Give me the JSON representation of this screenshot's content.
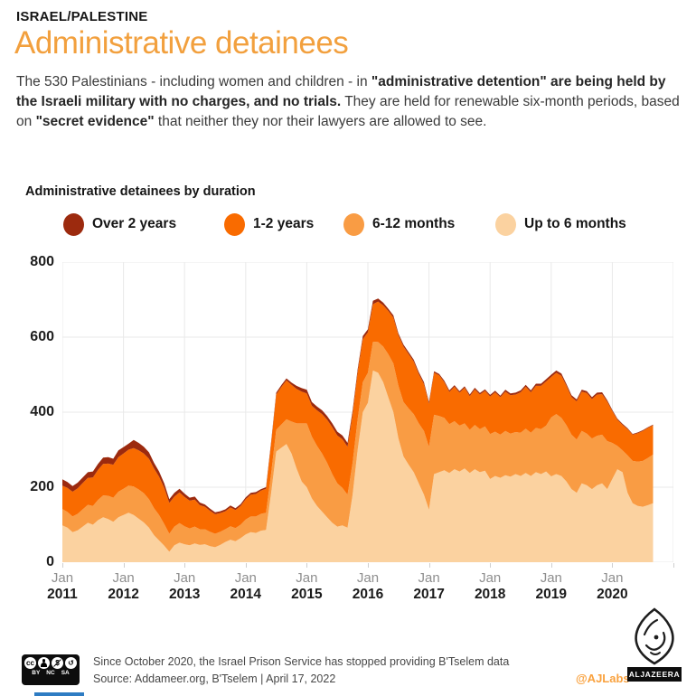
{
  "header": {
    "kicker": "ISRAEL/PALESTINE",
    "title": "Administrative detainees",
    "intro_segments": [
      {
        "text": "The 530 Palestinians - including women and children - in ",
        "bold": false
      },
      {
        "text": "\"administrative detention\" are being held by the Israeli military with no charges, and no trials.",
        "bold": true
      },
      {
        "text": " They are held for renewable six-month periods, based on ",
        "bold": false
      },
      {
        "text": "\"secret evidence\"",
        "bold": true
      },
      {
        "text": " that neither they nor their lawyers are allowed to see.",
        "bold": false
      }
    ]
  },
  "chart_data": {
    "type": "area",
    "stacked": true,
    "title": "Administrative detainees by duration",
    "x_unit": "month",
    "x_start": "2011-01",
    "x_end": "2020-09",
    "x_tick_month": "Jan",
    "x_tick_years": [
      "2011",
      "2012",
      "2013",
      "2014",
      "2015",
      "2016",
      "2017",
      "2018",
      "2019",
      "2020"
    ],
    "ylim": [
      0,
      800
    ],
    "y_ticks": [
      0,
      200,
      400,
      600,
      800
    ],
    "grid": true,
    "legend_position": "top",
    "legend": [
      {
        "label": "Over 2 years",
        "color": "#9C2A0E"
      },
      {
        "label": "1-2 years",
        "color": "#F96B00"
      },
      {
        "label": "6-12 months",
        "color": "#F99C44"
      },
      {
        "label": "Up to 6 months",
        "color": "#FBD2A0"
      }
    ],
    "series": [
      {
        "name": "Up to 6 months",
        "color": "#FBD2A0",
        "values": [
          98,
          92,
          80,
          85,
          95,
          105,
          100,
          112,
          120,
          115,
          108,
          120,
          126,
          132,
          126,
          116,
          106,
          92,
          72,
          58,
          44,
          28,
          45,
          52,
          48,
          45,
          50,
          46,
          48,
          43,
          40,
          46,
          54,
          60,
          56,
          64,
          74,
          80,
          78,
          84,
          86,
          185,
          295,
          305,
          315,
          290,
          250,
          215,
          200,
          170,
          150,
          135,
          120,
          105,
          95,
          98,
          92,
          180,
          300,
          400,
          425,
          511,
          505,
          480,
          440,
          400,
          330,
          282,
          260,
          240,
          210,
          180,
          140,
          235,
          240,
          245,
          238,
          248,
          242,
          250,
          238,
          248,
          240,
          244,
          222,
          230,
          225,
          232,
          228,
          235,
          230,
          238,
          230,
          240,
          235,
          242,
          229,
          235,
          230,
          215,
          195,
          185,
          210,
          205,
          195,
          205,
          210,
          195,
          222,
          248,
          240,
          185,
          157,
          150,
          148,
          152,
          157
        ]
      },
      {
        "name": "6-12 months",
        "color": "#F99C44",
        "values": [
          44,
          42,
          42,
          44,
          46,
          48,
          50,
          54,
          58,
          62,
          64,
          68,
          70,
          72,
          76,
          78,
          78,
          76,
          72,
          68,
          58,
          48,
          50,
          52,
          48,
          45,
          45,
          42,
          40,
          38,
          36,
          35,
          34,
          36,
          35,
          36,
          40,
          42,
          44,
          45,
          46,
          52,
          58,
          62,
          66,
          85,
          120,
          155,
          170,
          165,
          160,
          155,
          145,
          130,
          115,
          100,
          88,
          85,
          82,
          80,
          80,
          77,
          82,
          95,
          115,
          130,
          140,
          145,
          150,
          155,
          160,
          170,
          168,
          158,
          150,
          140,
          130,
          128,
          122,
          120,
          115,
          118,
          115,
          118,
          120,
          118,
          115,
          118,
          115,
          112,
          115,
          118,
          115,
          118,
          120,
          122,
          157,
          160,
          155,
          150,
          145,
          142,
          140,
          138,
          135,
          132,
          130,
          128,
          96,
          62,
          58,
          100,
          113,
          118,
          122,
          126,
          130
        ]
      },
      {
        "name": "1-2 years",
        "color": "#F96B00",
        "values": [
          62,
          64,
          66,
          68,
          70,
          72,
          76,
          80,
          84,
          86,
          88,
          92,
          94,
          96,
          102,
          104,
          106,
          108,
          106,
          102,
          96,
          82,
          80,
          82,
          78,
          74,
          72,
          64,
          60,
          56,
          52,
          50,
          48,
          50,
          48,
          50,
          54,
          58,
          60,
          62,
          64,
          80,
          94,
          100,
          104,
          98,
          92,
          85,
          80,
          82,
          95,
          105,
          115,
          125,
          128,
          130,
          128,
          130,
          125,
          115,
          108,
          100,
          108,
          110,
          115,
          122,
          135,
          148,
          145,
          140,
          132,
          125,
          115,
          112,
          108,
          95,
          86,
          92,
          88,
          95,
          90,
          95,
          92,
          95,
          100,
          105,
          100,
          105,
          102,
          100,
          108,
          112,
          108,
          112,
          115,
          118,
          108,
          110,
          112,
          105,
          100,
          102,
          105,
          108,
          105,
          110,
          108,
          105,
          85,
          70,
          68,
          70,
          70,
          76,
          80,
          80,
          78
        ]
      },
      {
        "name": "Over 2 years",
        "color": "#9C2A0E",
        "values": [
          17,
          16,
          15,
          15,
          15,
          15,
          16,
          16,
          17,
          17,
          16,
          18,
          17,
          16,
          22,
          20,
          18,
          17,
          15,
          14,
          12,
          10,
          10,
          10,
          9,
          8,
          8,
          7,
          6,
          6,
          5,
          5,
          5,
          5,
          5,
          5,
          5,
          5,
          5,
          4,
          4,
          5,
          5,
          5,
          5,
          6,
          8,
          9,
          10,
          10,
          10,
          10,
          10,
          10,
          10,
          10,
          10,
          9,
          8,
          8,
          8,
          9,
          8,
          7,
          6,
          6,
          5,
          5,
          5,
          5,
          5,
          5,
          4,
          4,
          4,
          4,
          4,
          4,
          4,
          4,
          4,
          4,
          4,
          4,
          4,
          4,
          4,
          5,
          5,
          5,
          5,
          5,
          5,
          6,
          6,
          6,
          6,
          6,
          6,
          5,
          5,
          5,
          5,
          5,
          5,
          5,
          5,
          4,
          3,
          3,
          3,
          2,
          2,
          2,
          2,
          2,
          2
        ]
      }
    ]
  },
  "footer": {
    "note": "Since October 2020, the Israel Prison Service has stopped providing B'Tselem data",
    "source": "Source: Addameer.org, B'Tselem | April 17, 2022",
    "credit": "@AJLabs",
    "cc_labels": [
      "BY",
      "NC",
      "SA"
    ],
    "logo_wordmark": "ALJAZEERA"
  },
  "colors": {
    "accent_orange": "#F2A03E",
    "credit_orange": "#F9A13D",
    "gridline": "#E9E9E9"
  }
}
